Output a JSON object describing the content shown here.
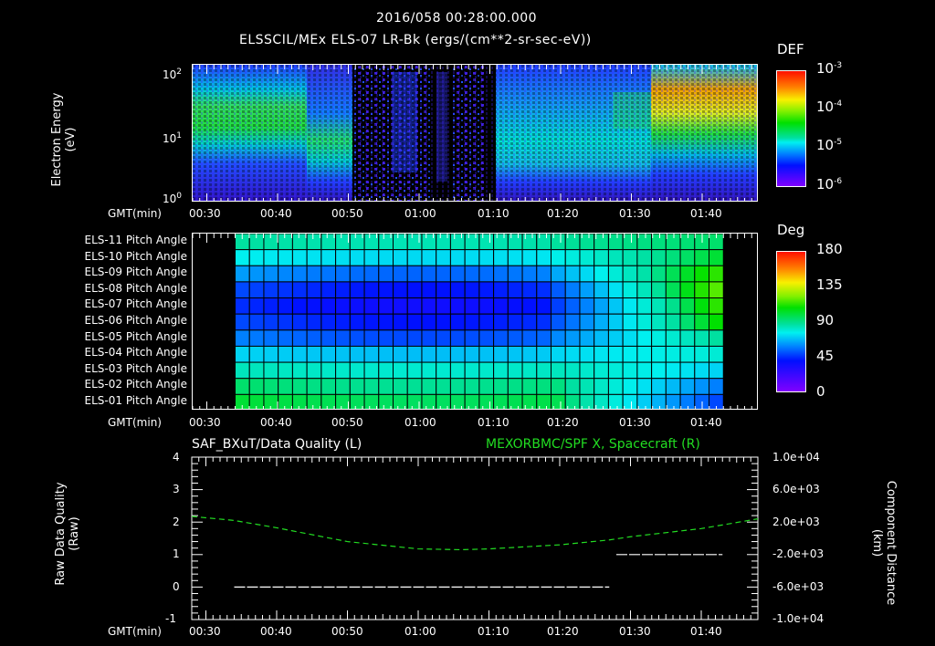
{
  "header": {
    "timestamp": "2016/058 00:28:00.000",
    "title": "ELSSCIL/MEx ELS-07 LR-Bk  (ergs/(cm**2-sr-sec-eV))"
  },
  "panel1": {
    "ylabel_line1": "Electron Energy",
    "ylabel_line2": "(eV)",
    "y_ticks": [
      {
        "base": "10",
        "exp": "2"
      },
      {
        "base": "10",
        "exp": "1"
      },
      {
        "base": "10",
        "exp": "0"
      }
    ],
    "xlabel": "GMT(min)",
    "x_ticks": [
      "00:30",
      "00:40",
      "00:50",
      "01:00",
      "01:10",
      "01:20",
      "01:30",
      "01:40"
    ],
    "colorbar": {
      "title": "DEF",
      "ticks": [
        {
          "base": "10",
          "exp": "-3"
        },
        {
          "base": "10",
          "exp": "-4"
        },
        {
          "base": "10",
          "exp": "-5"
        },
        {
          "base": "10",
          "exp": "-6"
        }
      ]
    }
  },
  "panel2": {
    "row_labels": [
      "ELS-11 Pitch Angle",
      "ELS-10 Pitch Angle",
      "ELS-09 Pitch Angle",
      "ELS-08 Pitch Angle",
      "ELS-07 Pitch Angle",
      "ELS-06 Pitch Angle",
      "ELS-05 Pitch Angle",
      "ELS-04 Pitch Angle",
      "ELS-03 Pitch Angle",
      "ELS-02 Pitch Angle",
      "ELS-01 Pitch Angle"
    ],
    "xlabel": "GMT(min)",
    "x_ticks": [
      "00:30",
      "00:40",
      "00:50",
      "01:00",
      "01:10",
      "01:20",
      "01:30",
      "01:40"
    ],
    "colorbar": {
      "title": "Deg",
      "ticks": [
        "180",
        "135",
        "90",
        "45",
        "0"
      ]
    }
  },
  "panel3": {
    "left_title": "SAF_BXuT/Data Quality (L)",
    "right_title": "MEXORBMC/SPF X, Spacecraft (R)",
    "right_title_color": "#22dd22",
    "ylabel_left_line1": "Raw Data Quality",
    "ylabel_left_line2": "(Raw)",
    "ylabel_right_line1": "Component Distance",
    "ylabel_right_line2": "(km)",
    "y_left_ticks": [
      "4",
      "3",
      "2",
      "1",
      "0",
      "-1"
    ],
    "y_right_ticks": [
      "1.0e+04",
      "6.0e+03",
      "2.0e+03",
      "-2.0e+03",
      "-6.0e+03",
      "-1.0e+04"
    ],
    "xlabel": "GMT(min)",
    "x_ticks": [
      "00:30",
      "00:40",
      "00:50",
      "01:00",
      "01:10",
      "01:20",
      "01:30",
      "01:40"
    ]
  },
  "chart_data": [
    {
      "type": "heatmap",
      "title": "ELSSCIL/MEx ELS-07 LR-Bk  (ergs/(cm**2-sr-sec-eV))",
      "subtitle": "2016/058 00:28:00.000",
      "xlabel": "GMT(min)",
      "ylabel": "Electron Energy (eV)",
      "yscale": "log",
      "ylim": [
        1,
        150
      ],
      "xlim": [
        "00:28",
        "01:48"
      ],
      "x_ticks": [
        "00:30",
        "00:40",
        "00:50",
        "01:00",
        "01:10",
        "01:20",
        "01:30",
        "01:40"
      ],
      "colorbar": {
        "label": "DEF",
        "scale": "log",
        "range": [
          1e-06,
          0.001
        ]
      },
      "features": [
        {
          "time": "00:28-00:35",
          "energy_eV": "15-50",
          "DEF": "~1e-4 (green)"
        },
        {
          "time": "00:35-00:40",
          "energy_eV": "5-100",
          "DEF": "~1e-4 (green)"
        },
        {
          "time": "00:40-00:50",
          "energy_eV": "4-20",
          "DEF": "~5e-5 (green/cyan)"
        },
        {
          "time": "00:50-01:10",
          "energy_eV": "sparse",
          "DEF": "~1e-6 (sparse purple/blue, gaps)"
        },
        {
          "time": "01:10-01:30",
          "energy_eV": "5-30",
          "DEF": "~2e-5 (cyan)"
        },
        {
          "time": "01:30-01:48",
          "energy_eV": "20-60",
          "DEF": "~3e-4 to 1e-3 (yellow/orange)"
        }
      ]
    },
    {
      "type": "heatmap",
      "title": "Pitch Angle",
      "xlabel": "GMT(min)",
      "ylabel": "",
      "rows": [
        "ELS-11",
        "ELS-10",
        "ELS-09",
        "ELS-08",
        "ELS-07",
        "ELS-06",
        "ELS-05",
        "ELS-04",
        "ELS-03",
        "ELS-02",
        "ELS-01"
      ],
      "xlim": [
        "00:28",
        "01:48"
      ],
      "data_range_time": [
        "00:34",
        "01:43"
      ],
      "colorbar": {
        "label": "Deg",
        "range": [
          0,
          180
        ],
        "ticks": [
          0,
          45,
          90,
          135,
          180
        ]
      },
      "values_deg_start": [
        95,
        80,
        65,
        50,
        45,
        50,
        60,
        75,
        90,
        100,
        105
      ],
      "values_deg_end": [
        100,
        105,
        115,
        120,
        115,
        110,
        95,
        85,
        75,
        60,
        50
      ]
    },
    {
      "type": "line",
      "title": "SAF_BXuT/Data Quality (L) | MEXORBMC/SPF X, Spacecraft (R)",
      "xlabel": "GMT(min)",
      "ylabel": "Raw Data Quality (Raw)",
      "ylabel_right": "Component Distance (km)",
      "ylim": [
        -1,
        4
      ],
      "ylim_right": [
        -10000,
        10000
      ],
      "x": [
        "00:28",
        "00:34",
        "00:40",
        "00:50",
        "01:00",
        "01:06",
        "01:10",
        "01:20",
        "01:27",
        "01:30",
        "01:40",
        "01:48"
      ],
      "series": [
        {
          "name": "SAF_BXuT/Data Quality (L)",
          "axis": "left",
          "color": "#ffffff",
          "segments": [
            {
              "from": "00:34",
              "to": "01:27",
              "value": 0
            },
            {
              "from": "01:28",
              "to": "01:43",
              "value": 1
            }
          ]
        },
        {
          "name": "MEXORBMC/SPF X, Spacecraft (R)",
          "axis": "right",
          "color": "#22dd22",
          "style": "dashed",
          "values": [
            2700,
            2200,
            1300,
            -400,
            -1300,
            -1400,
            -1300,
            -800,
            -200,
            200,
            1200,
            2400
          ]
        }
      ]
    }
  ]
}
